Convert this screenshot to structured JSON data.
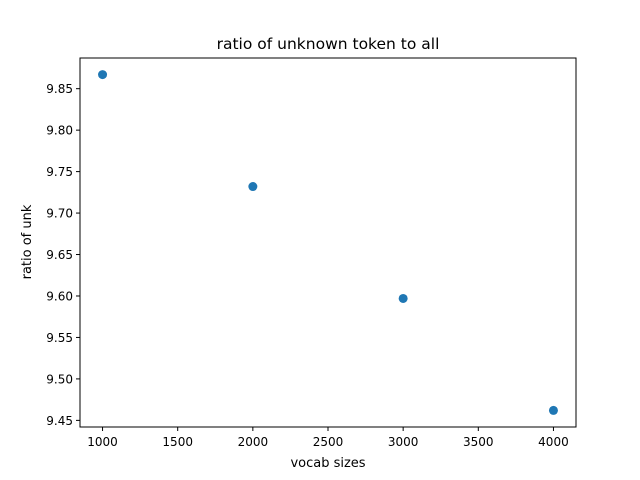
{
  "chart_data": {
    "type": "scatter",
    "title": "ratio of unknown token to all",
    "xlabel": "vocab sizes",
    "ylabel": "ratio of unk",
    "x": [
      1000,
      2000,
      3000,
      4000
    ],
    "y": [
      9.867,
      9.732,
      9.597,
      9.462
    ],
    "xlim": [
      850,
      4150
    ],
    "ylim": [
      9.442,
      9.887
    ],
    "xticks": [
      1000,
      1500,
      2000,
      2500,
      3000,
      3500,
      4000
    ],
    "xtick_labels": [
      "1000",
      "1500",
      "2000",
      "2500",
      "3000",
      "3500",
      "4000"
    ],
    "yticks": [
      9.45,
      9.5,
      9.55,
      9.6,
      9.65,
      9.7,
      9.75,
      9.8,
      9.85
    ],
    "ytick_labels": [
      "9.45",
      "9.50",
      "9.55",
      "9.60",
      "9.65",
      "9.70",
      "9.75",
      "9.80",
      "9.85"
    ],
    "grid": false,
    "marker_color": "#1f77b4"
  }
}
